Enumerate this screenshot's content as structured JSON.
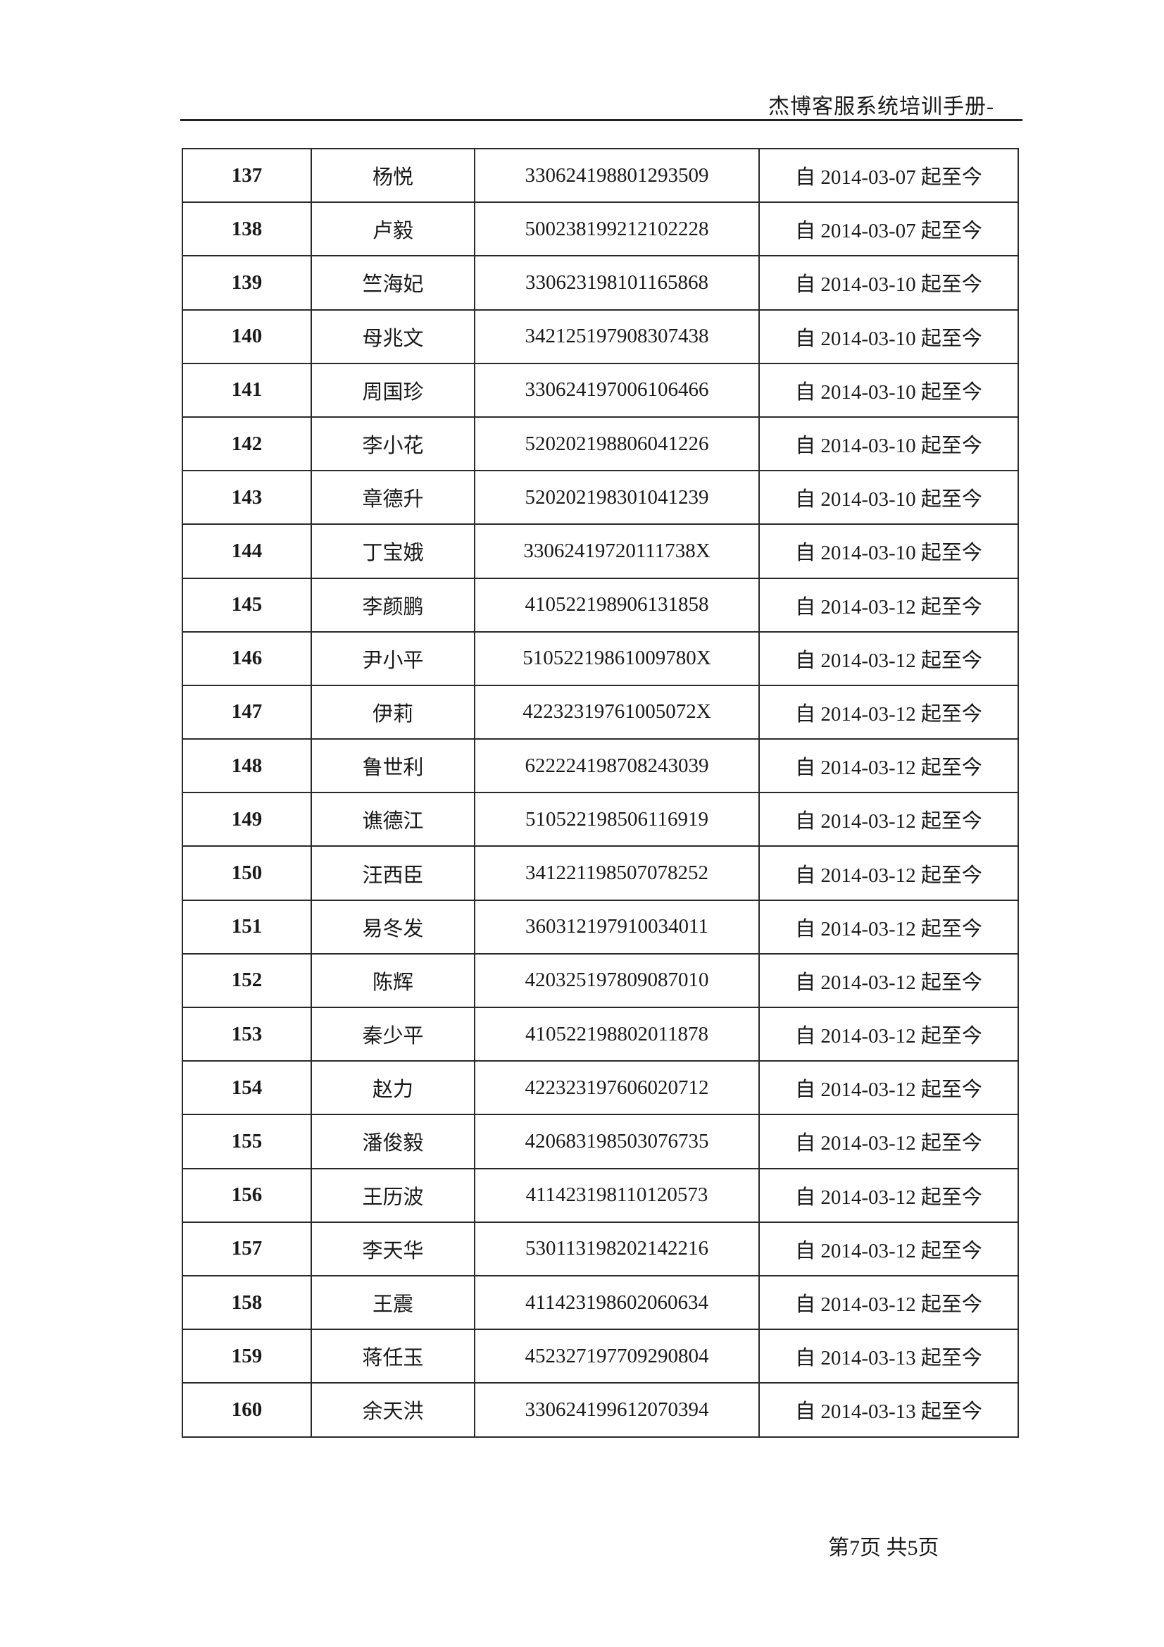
{
  "header": {
    "title": "杰博客服系统培训手册-"
  },
  "table": {
    "rows": [
      [
        "137",
        "杨悦",
        "330624198801293509",
        "自 2014-03-07 起至今"
      ],
      [
        "138",
        "卢毅",
        "500238199212102228",
        "自 2014-03-07 起至今"
      ],
      [
        "139",
        "竺海妃",
        "330623198101165868",
        "自 2014-03-10 起至今"
      ],
      [
        "140",
        "母兆文",
        "342125197908307438",
        "自 2014-03-10 起至今"
      ],
      [
        "141",
        "周国珍",
        "330624197006106466",
        "自 2014-03-10 起至今"
      ],
      [
        "142",
        "李小花",
        "520202198806041226",
        "自 2014-03-10 起至今"
      ],
      [
        "143",
        "章德升",
        "520202198301041239",
        "自 2014-03-10 起至今"
      ],
      [
        "144",
        "丁宝娥",
        "33062419720111738X",
        "自 2014-03-10 起至今"
      ],
      [
        "145",
        "李颜鹏",
        "410522198906131858",
        "自 2014-03-12 起至今"
      ],
      [
        "146",
        "尹小平",
        "51052219861009780X",
        "自 2014-03-12 起至今"
      ],
      [
        "147",
        "伊莉",
        "42232319761005072X",
        "自 2014-03-12 起至今"
      ],
      [
        "148",
        "鲁世利",
        "622224198708243039",
        "自 2014-03-12 起至今"
      ],
      [
        "149",
        "谯德江",
        "510522198506116919",
        "自 2014-03-12 起至今"
      ],
      [
        "150",
        "汪西臣",
        "341221198507078252",
        "自 2014-03-12 起至今"
      ],
      [
        "151",
        "易冬发",
        "360312197910034011",
        "自 2014-03-12 起至今"
      ],
      [
        "152",
        "陈辉",
        "420325197809087010",
        "自 2014-03-12 起至今"
      ],
      [
        "153",
        "秦少平",
        "410522198802011878",
        "自 2014-03-12 起至今"
      ],
      [
        "154",
        "赵力",
        "422323197606020712",
        "自 2014-03-12 起至今"
      ],
      [
        "155",
        "潘俊毅",
        "420683198503076735",
        "自 2014-03-12 起至今"
      ],
      [
        "156",
        "王历波",
        "411423198110120573",
        "自 2014-03-12 起至今"
      ],
      [
        "157",
        "李天华",
        "530113198202142216",
        "自 2014-03-12 起至今"
      ],
      [
        "158",
        "王震",
        "411423198602060634",
        "自 2014-03-12 起至今"
      ],
      [
        "159",
        "蒋任玉",
        "452327197709290804",
        "自 2014-03-13 起至今"
      ],
      [
        "160",
        "余天洪",
        "330624199612070394",
        "自 2014-03-13 起至今"
      ]
    ]
  },
  "footer": {
    "page_info": "第7页 共5页"
  }
}
